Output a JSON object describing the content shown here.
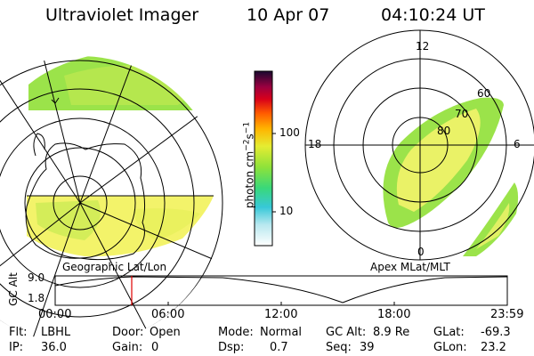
{
  "header": {
    "instrument": "Ultraviolet Imager",
    "date": "10 Apr 07",
    "time": "04:10:24 UT"
  },
  "maps": {
    "geographic_label": "Geographic Lat/Lon",
    "apex_label": "Apex MLat/MLT",
    "mlt_labels": [
      "12",
      "18",
      "6",
      "0"
    ],
    "mlat_labels": [
      "60",
      "70",
      "80"
    ]
  },
  "colorbar": {
    "unit": "photon cm",
    "unit_exp1": "−2",
    "unit_mid": "s",
    "unit_exp2": "−1",
    "ticks": [
      "100",
      "10"
    ]
  },
  "altitude_plot": {
    "ylabel": "GC Alt",
    "yticks": [
      "9.0",
      "1.8"
    ],
    "xticks": [
      "00:00",
      "06:00",
      "12:00",
      "18:00",
      "23:59"
    ]
  },
  "info": {
    "flt_label": "Flt:",
    "flt_value": "LBHL",
    "ip_label": "IP:",
    "ip_value": "36.0",
    "door_label": "Door:",
    "door_value": "Open",
    "gain_label": "Gain:",
    "gain_value": "0",
    "mode_label": "Mode:",
    "mode_value": "Normal",
    "dsp_label": "Dsp:",
    "dsp_value": "0.7",
    "gcalt_label": "GC Alt:",
    "gcalt_value": "8.9 Re",
    "seq_label": "Seq:",
    "seq_value": "39",
    "glat_label": "GLat:",
    "glat_value": "-69.3",
    "glon_label": "GLon:",
    "glon_value": "23.2"
  },
  "colors": {
    "aurora_green": "#9be34a",
    "aurora_yellow": "#f3f36a",
    "outline": "#000000"
  }
}
